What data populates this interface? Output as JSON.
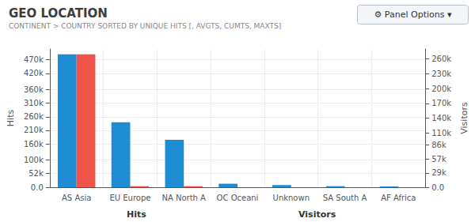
{
  "chart_data": {
    "type": "bar",
    "title": "GEO LOCATION",
    "subtitle": "CONTINENT > COUNTRY SORTED BY UNIQUE HITS [, AVGTS, CUMTS, MAXTS]",
    "categories": [
      "AS Asia",
      "EU Europe",
      "NA North A",
      "OC Oceani",
      "Unknown",
      "SA South A",
      "AF Africa"
    ],
    "series": [
      {
        "color": "#1f8dd6",
        "values": [
          490000,
          240000,
          175000,
          13000,
          8000,
          4000,
          3000
        ]
      },
      {
        "color": "#f0534a",
        "values": [
          490000,
          4000,
          4000,
          0,
          0,
          0,
          0
        ]
      }
    ],
    "ylabel": "Hits",
    "y2label": "Visitors",
    "ylim": [
      0,
      510000
    ],
    "yticks": [
      {
        "value": 0,
        "label": "0.0"
      },
      {
        "value": 52000,
        "label": "52k"
      },
      {
        "value": 100000,
        "label": "100k"
      },
      {
        "value": 160000,
        "label": "160k"
      },
      {
        "value": 210000,
        "label": "210k"
      },
      {
        "value": 260000,
        "label": "260k"
      },
      {
        "value": 310000,
        "label": "310k"
      },
      {
        "value": 360000,
        "label": "360k"
      },
      {
        "value": 420000,
        "label": "420k"
      },
      {
        "value": 470000,
        "label": "470k"
      }
    ],
    "y2lim": [
      0,
      280000
    ],
    "y2ticks": [
      {
        "value": 0,
        "label": "0.0"
      },
      {
        "value": 29000,
        "label": "29k"
      },
      {
        "value": 57000,
        "label": "57k"
      },
      {
        "value": 86000,
        "label": "86k"
      },
      {
        "value": 110000,
        "label": "110k"
      },
      {
        "value": 140000,
        "label": "140k"
      },
      {
        "value": 170000,
        "label": "170k"
      },
      {
        "value": 200000,
        "label": "200k"
      },
      {
        "value": 230000,
        "label": "230k"
      },
      {
        "value": 260000,
        "label": "260k"
      }
    ],
    "grid": true,
    "annotations": [
      "Hits",
      "Visitors",
      "⚙ Panel Options ▾"
    ]
  }
}
